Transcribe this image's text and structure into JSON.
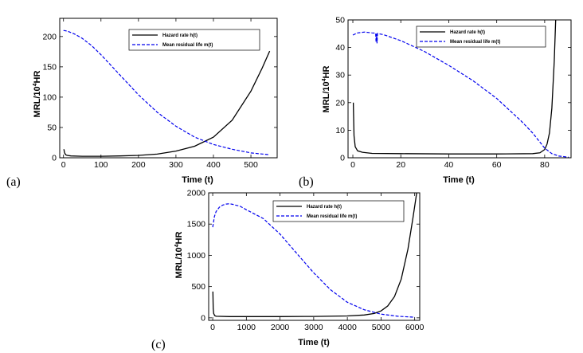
{
  "figure": {
    "series_names": [
      "Hazard rate h(t)",
      "Mean residual life m(t)"
    ],
    "colors": {
      "hazard": "#000000",
      "mrl": "#0000ee"
    }
  },
  "chart_data": [
    {
      "type": "line",
      "panel_label": "(a)",
      "xlabel": "Time (t)",
      "ylabel_main": "MRL/10",
      "ylabel_sup": "4",
      "ylabel_end": "HR",
      "xlim": [
        -10,
        570
      ],
      "ylim": [
        0,
        230
      ],
      "xticks": [
        0,
        100,
        200,
        300,
        400,
        500
      ],
      "yticks": [
        0,
        50,
        100,
        150,
        200
      ],
      "legend_position": "top-right",
      "series": [
        {
          "name": "Hazard rate h(t)",
          "style": "solid",
          "x": [
            1,
            3,
            6,
            10,
            20,
            50,
            100,
            150,
            200,
            250,
            300,
            350,
            400,
            450,
            500,
            530,
            550
          ],
          "y": [
            14,
            8,
            5,
            4,
            3,
            2.5,
            2.5,
            3,
            4,
            6,
            11,
            19,
            34,
            62,
            110,
            148,
            176
          ]
        },
        {
          "name": "Mean residual life m(t)",
          "style": "dashed",
          "x": [
            0,
            10,
            30,
            50,
            75,
            100,
            150,
            200,
            250,
            300,
            350,
            400,
            450,
            500,
            550
          ],
          "y": [
            210,
            209,
            204,
            197,
            185,
            170,
            137,
            104,
            75,
            52,
            34,
            22,
            14,
            8,
            5
          ]
        }
      ]
    },
    {
      "type": "line",
      "panel_label": "(b)",
      "xlabel": "Time (t)",
      "ylabel_main": "MRL/10",
      "ylabel_sup": "4",
      "ylabel_end": "HR",
      "xlim": [
        -2,
        91
      ],
      "ylim": [
        0,
        50
      ],
      "xticks": [
        0,
        20,
        40,
        60,
        80
      ],
      "yticks": [
        0,
        10,
        20,
        30,
        40,
        50
      ],
      "legend_position": "top-right",
      "series": [
        {
          "name": "Hazard rate h(t)",
          "style": "solid",
          "x": [
            0.2,
            0.5,
            1,
            2,
            4,
            8,
            20,
            40,
            60,
            75,
            78,
            80,
            81,
            82,
            83,
            84,
            84.6
          ],
          "y": [
            20,
            8,
            4,
            2.5,
            2,
            1.6,
            1.5,
            1.4,
            1.4,
            1.5,
            1.8,
            3,
            5,
            9,
            18,
            35,
            50
          ]
        },
        {
          "name": "Mean residual life m(t)",
          "style": "dashed",
          "x": [
            0,
            2,
            5,
            8,
            9.5,
            9.7,
            9.9,
            10.1,
            10.3,
            13,
            20,
            30,
            40,
            50,
            60,
            70,
            75,
            80,
            83,
            86,
            90
          ],
          "y": [
            44.5,
            45.3,
            45.6,
            45.3,
            45.2,
            42,
            45,
            41.5,
            45.1,
            44.6,
            42.5,
            38.5,
            33.5,
            28,
            21.5,
            13.5,
            9,
            3.5,
            1.5,
            0.6,
            0.2
          ]
        }
      ]
    },
    {
      "type": "line",
      "panel_label": "(c)",
      "xlabel": "Time (t)",
      "ylabel_main": "MRL/10",
      "ylabel_sup": "4",
      "ylabel_end": "HR",
      "xlim": [
        -120,
        6150
      ],
      "ylim": [
        -40,
        2000
      ],
      "xticks": [
        0,
        1000,
        2000,
        3000,
        4000,
        5000,
        6000
      ],
      "yticks": [
        0,
        500,
        1000,
        1500,
        2000
      ],
      "legend_position": "top-right",
      "series": [
        {
          "name": "Hazard rate h(t)",
          "style": "solid",
          "x": [
            5,
            15,
            30,
            60,
            100,
            500,
            1000,
            2000,
            3000,
            4000,
            4500,
            4800,
            5000,
            5200,
            5400,
            5600,
            5800,
            5950,
            6060
          ],
          "y": [
            420,
            150,
            70,
            35,
            25,
            20,
            20,
            20,
            22,
            30,
            45,
            70,
            110,
            190,
            340,
            620,
            1100,
            1600,
            2000
          ]
        },
        {
          "name": "Mean residual life m(t)",
          "style": "dashed",
          "x": [
            0,
            50,
            100,
            200,
            300,
            400,
            500,
            600,
            700,
            800,
            1000,
            1500,
            2000,
            2500,
            3000,
            3500,
            4000,
            4500,
            5000,
            5500,
            6000
          ],
          "y": [
            1450,
            1620,
            1700,
            1770,
            1805,
            1820,
            1825,
            1815,
            1800,
            1790,
            1730,
            1590,
            1340,
            1030,
            720,
            450,
            250,
            130,
            60,
            25,
            10
          ]
        }
      ]
    }
  ]
}
